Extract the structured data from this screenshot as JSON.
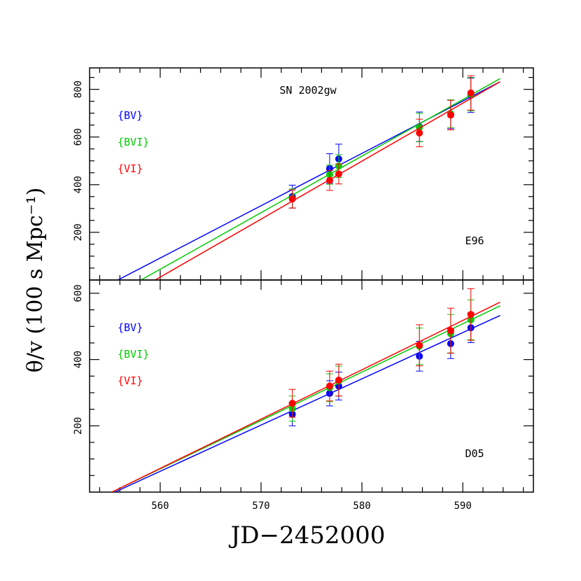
{
  "chart_data": {
    "type": "scatter",
    "title": "SN 2002gw",
    "xlabel": "JD−2452000",
    "ylabel": "θ/v (100 s Mpc⁻¹)",
    "xlim": [
      553,
      597
    ],
    "x_ticks": [
      560,
      570,
      580,
      590
    ],
    "grid": false,
    "series_colors": {
      "{BV}": "#0000ff",
      "{BVI}": "#00cc00",
      "{VI}": "#ff0000"
    },
    "panels": [
      {
        "name": "top",
        "label": "E96",
        "ylim": [
          0,
          890
        ],
        "y_ticks": [
          200,
          400,
          600,
          800
        ],
        "legend": [
          "{BV}",
          "{BVI}",
          "{VI}"
        ],
        "series": [
          {
            "name": "{BV}",
            "x": [
              573.1,
              576.8,
              577.7,
              585.7,
              588.8,
              590.8
            ],
            "y": [
              350,
              468,
              508,
              643,
              695,
              775
            ],
            "yerr": [
              48,
              62,
              62,
              62,
              60,
              72
            ],
            "fit": {
              "x": [
                555.8,
                593.7
              ],
              "y": [
                0,
                832
              ]
            }
          },
          {
            "name": "{BVI}",
            "x": [
              573.1,
              576.8,
              577.7,
              585.7,
              588.8,
              590.8
            ],
            "y": [
              342,
              442,
              478,
              640,
              698,
              780
            ],
            "yerr": [
              40,
              40,
              48,
              60,
              58,
              70
            ],
            "fit": {
              "x": [
                558.1,
                593.7
              ],
              "y": [
                0,
                845
              ]
            }
          },
          {
            "name": "{VI}",
            "x": [
              573.1,
              576.8,
              577.7,
              585.7,
              588.8,
              590.8
            ],
            "y": [
              340,
              418,
              445,
              617,
              692,
              785
            ],
            "yerr": [
              38,
              42,
              42,
              58,
              62,
              72
            ],
            "fit": {
              "x": [
                559.5,
                593.7
              ],
              "y": [
                0,
                832
              ]
            }
          }
        ]
      },
      {
        "name": "bottom",
        "label": "D05",
        "ylim": [
          0,
          640
        ],
        "y_ticks": [
          200,
          400,
          600
        ],
        "legend": [
          "{BV}",
          "{BVI}",
          "{VI}"
        ],
        "series": [
          {
            "name": "{BV}",
            "x": [
              573.1,
              576.8,
              577.7,
              585.7,
              588.8,
              590.8
            ],
            "y": [
              235,
              298,
              320,
              410,
              448,
              496
            ],
            "yerr": [
              35,
              38,
              42,
              45,
              45,
              45
            ],
            "fit": {
              "x": [
                555.5,
                593.7
              ],
              "y": [
                0,
                533
              ]
            }
          },
          {
            "name": "{BVI}",
            "x": [
              573.1,
              576.8,
              577.7,
              585.7,
              588.8,
              590.8
            ],
            "y": [
              252,
              315,
              335,
              440,
              478,
              520
            ],
            "yerr": [
              38,
              42,
              45,
              55,
              58,
              60
            ],
            "fit": {
              "x": [
                555.2,
                593.7
              ],
              "y": [
                0,
                562
              ]
            }
          },
          {
            "name": "{VI}",
            "x": [
              573.1,
              576.8,
              577.7,
              585.7,
              588.8,
              590.8
            ],
            "y": [
              268,
              320,
              338,
              443,
              487,
              536
            ],
            "yerr": [
              42,
              45,
              48,
              62,
              68,
              78
            ],
            "fit": {
              "x": [
                555.2,
                593.7
              ],
              "y": [
                0,
                573
              ]
            }
          }
        ]
      }
    ]
  }
}
